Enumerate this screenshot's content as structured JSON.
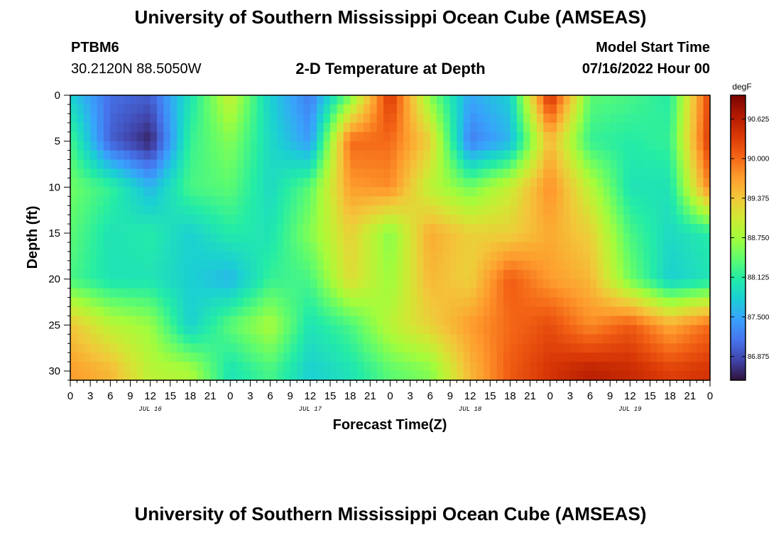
{
  "header": {
    "title": "University of Southern Mississippi Ocean Cube (AMSEAS)",
    "station_id": "PTBM6",
    "station_coords": "30.2120N  88.5050W",
    "plot_title": "2-D Temperature at Depth",
    "start_label": "Model Start Time",
    "start_value": "07/16/2022 Hour 00"
  },
  "footer": {
    "title": "University of Southern Mississippi Ocean Cube (AMSEAS)"
  },
  "colors": {
    "colormap": [
      "#30123b",
      "#4145ab",
      "#4675ed",
      "#39a2fc",
      "#1bcfd4",
      "#24eca6",
      "#61fc6c",
      "#a4fc3b",
      "#d1e834",
      "#f3c63a",
      "#fe9b2d",
      "#f36315",
      "#d93806",
      "#b11901",
      "#7a0402"
    ]
  },
  "chart_data": {
    "type": "heatmap",
    "title": "2-D Temperature at Depth",
    "xlabel": "Forecast Time(Z)",
    "ylabel": "Depth (ft)",
    "x_ticks": [
      "0",
      "3",
      "6",
      "9",
      "12",
      "15",
      "18",
      "21",
      "0",
      "3",
      "6",
      "9",
      "12",
      "15",
      "18",
      "21",
      "0",
      "3",
      "6",
      "9",
      "12",
      "15",
      "18",
      "21",
      "0",
      "3",
      "6",
      "9",
      "12",
      "15",
      "18",
      "21",
      "0"
    ],
    "date_labels": [
      "JUL 16",
      "JUL 17",
      "JUL 18",
      "JUL 19"
    ],
    "y_ticks": [
      "0",
      "5",
      "10",
      "15",
      "20",
      "25",
      "30"
    ],
    "ylim": [
      0,
      31
    ],
    "xlim_hours": [
      0,
      96
    ],
    "colorbar": {
      "units": "degF",
      "range": [
        86.5,
        91.0
      ],
      "tick_values": [
        86.875,
        87.5,
        88.125,
        88.75,
        89.375,
        90.0,
        90.625
      ],
      "tick_labels": [
        "86.875",
        "87.500",
        "88.125",
        "88.750",
        "89.375",
        "90.000",
        "90.625"
      ]
    },
    "depths_ft": [
      0,
      5,
      10,
      15,
      20,
      25,
      30
    ],
    "hours": [
      0,
      6,
      12,
      18,
      24,
      30,
      36,
      42,
      48,
      54,
      60,
      66,
      72,
      78,
      84,
      90,
      96
    ],
    "values": [
      [
        87.8,
        87.1,
        87.0,
        88.0,
        89.0,
        87.8,
        87.2,
        88.5,
        90.4,
        88.6,
        87.5,
        87.8,
        90.5,
        88.4,
        88.3,
        88.1,
        90.3
      ],
      [
        88.3,
        87.0,
        86.6,
        88.2,
        88.6,
        87.9,
        87.4,
        90.0,
        90.0,
        89.3,
        87.2,
        87.6,
        89.5,
        88.2,
        88.1,
        88.2,
        90.4
      ],
      [
        88.5,
        88.2,
        87.6,
        88.3,
        88.4,
        87.9,
        88.4,
        89.7,
        89.8,
        88.9,
        88.5,
        89.0,
        89.8,
        88.9,
        88.0,
        88.0,
        89.9
      ],
      [
        88.4,
        88.0,
        88.1,
        87.8,
        88.1,
        88.0,
        88.6,
        89.3,
        88.6,
        89.6,
        89.3,
        89.3,
        89.6,
        89.3,
        88.3,
        87.9,
        88.1
      ],
      [
        88.3,
        88.0,
        88.0,
        87.8,
        87.6,
        88.2,
        88.3,
        89.2,
        88.7,
        89.5,
        89.3,
        90.1,
        89.7,
        89.5,
        88.5,
        87.8,
        88.0
      ],
      [
        89.4,
        88.9,
        88.7,
        87.8,
        88.4,
        88.8,
        88.0,
        88.3,
        88.9,
        89.3,
        89.7,
        90.0,
        90.2,
        89.8,
        90.1,
        89.6,
        90.0
      ],
      [
        89.7,
        89.5,
        88.9,
        88.8,
        88.0,
        88.3,
        87.8,
        88.0,
        88.4,
        88.6,
        89.5,
        90.1,
        90.4,
        90.6,
        90.5,
        90.3,
        90.4
      ]
    ]
  }
}
